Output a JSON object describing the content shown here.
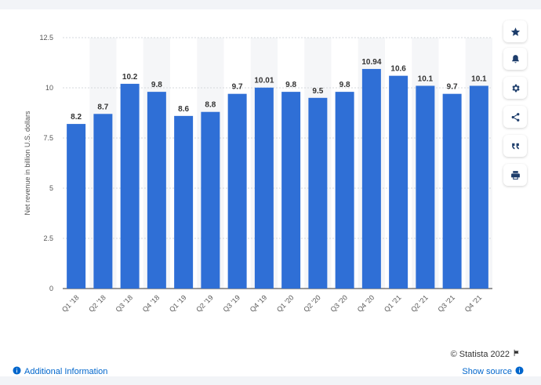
{
  "chart_data": {
    "type": "bar",
    "categories": [
      "Q1 '18",
      "Q2 '18",
      "Q3 '18",
      "Q4 '18",
      "Q1 '19",
      "Q2 '19",
      "Q3 '19",
      "Q4 '19",
      "Q1 '20",
      "Q2 '20",
      "Q3 '20",
      "Q4 '20",
      "Q1 '21",
      "Q2 '21",
      "Q3 '21",
      "Q4 '21"
    ],
    "values": [
      8.2,
      8.7,
      10.2,
      9.8,
      8.6,
      8.8,
      9.7,
      10.01,
      9.8,
      9.5,
      9.8,
      10.94,
      10.6,
      10.1,
      9.7,
      10.1
    ],
    "value_labels": [
      "8.2",
      "8.7",
      "10.2",
      "9.8",
      "8.6",
      "8.8",
      "9.7",
      "10.01",
      "9.8",
      "9.5",
      "9.8",
      "10.94",
      "10.6",
      "10.1",
      "9.7",
      "10.1"
    ],
    "ylabel": "Net revenue in billion U.S. dollars",
    "ylim": [
      0,
      12.5
    ],
    "yticks": [
      0,
      2.5,
      5,
      7.5,
      10,
      12.5
    ],
    "ytick_labels": [
      "0",
      "2.5",
      "5",
      "7.5",
      "10",
      "12.5"
    ],
    "bar_color": "#2f6fd6",
    "grid": true,
    "legend": "none"
  },
  "footer": {
    "copyright": "© Statista 2022",
    "additional_info": "Additional Information",
    "show_source": "Show source"
  },
  "toolbar": {
    "icons": [
      "star-icon",
      "bell-icon",
      "gear-icon",
      "share-icon",
      "quote-icon",
      "print-icon"
    ]
  }
}
